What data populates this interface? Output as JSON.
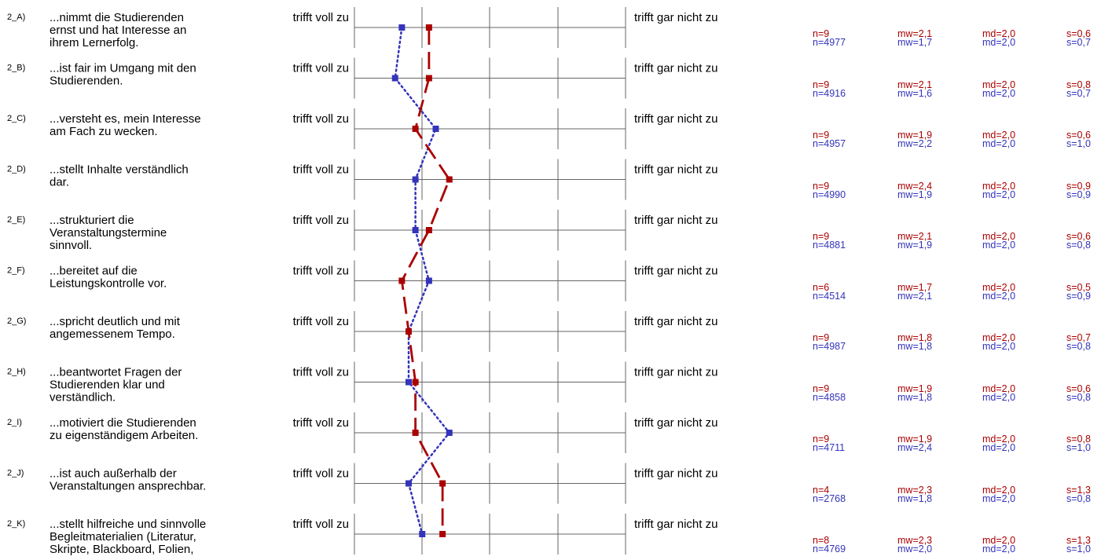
{
  "colors": {
    "course": "#aa0000",
    "reference": "#3333bb",
    "grid": "#666666"
  },
  "chart_data": {
    "type": "line",
    "scale": {
      "min": 1,
      "max": 5
    },
    "left_pole": "trifft voll zu",
    "right_pole": "trifft gar nicht zu",
    "items": [
      {
        "code": "2_A)",
        "label": [
          "...nimmt die Studierenden",
          "ernst und hat Interesse an",
          "ihrem Lernerfolg."
        ],
        "course": {
          "n": "n=9",
          "mw": "mw=2,1",
          "md": "md=2,0",
          "s": "s=0,6",
          "value": 2.1
        },
        "reference": {
          "n": "n=4977",
          "mw": "mw=1,7",
          "md": "md=2,0",
          "s": "s=0,7",
          "value": 1.7
        }
      },
      {
        "code": "2_B)",
        "label": [
          "...ist fair im Umgang mit den",
          "Studierenden."
        ],
        "course": {
          "n": "n=9",
          "mw": "mw=2,1",
          "md": "md=2,0",
          "s": "s=0,8",
          "value": 2.1
        },
        "reference": {
          "n": "n=4916",
          "mw": "mw=1,6",
          "md": "md=2,0",
          "s": "s=0,7",
          "value": 1.6
        }
      },
      {
        "code": "2_C)",
        "label": [
          "...versteht es, mein Interesse",
          "am Fach zu wecken."
        ],
        "course": {
          "n": "n=9",
          "mw": "mw=1,9",
          "md": "md=2,0",
          "s": "s=0,6",
          "value": 1.9
        },
        "reference": {
          "n": "n=4957",
          "mw": "mw=2,2",
          "md": "md=2,0",
          "s": "s=1,0",
          "value": 2.2
        }
      },
      {
        "code": "2_D)",
        "label": [
          "...stellt Inhalte verständlich",
          "dar."
        ],
        "course": {
          "n": "n=9",
          "mw": "mw=2,4",
          "md": "md=2,0",
          "s": "s=0,9",
          "value": 2.4
        },
        "reference": {
          "n": "n=4990",
          "mw": "mw=1,9",
          "md": "md=2,0",
          "s": "s=0,9",
          "value": 1.9
        }
      },
      {
        "code": "2_E)",
        "label": [
          "...strukturiert die",
          "Veranstaltungstermine",
          "sinnvoll."
        ],
        "course": {
          "n": "n=9",
          "mw": "mw=2,1",
          "md": "md=2,0",
          "s": "s=0,6",
          "value": 2.1
        },
        "reference": {
          "n": "n=4881",
          "mw": "mw=1,9",
          "md": "md=2,0",
          "s": "s=0,8",
          "value": 1.9
        }
      },
      {
        "code": "2_F)",
        "label": [
          "...bereitet auf die",
          "Leistungskontrolle vor."
        ],
        "course": {
          "n": "n=6",
          "mw": "mw=1,7",
          "md": "md=2,0",
          "s": "s=0,5",
          "value": 1.7
        },
        "reference": {
          "n": "n=4514",
          "mw": "mw=2,1",
          "md": "md=2,0",
          "s": "s=0,9",
          "value": 2.1
        }
      },
      {
        "code": "2_G)",
        "label": [
          "...spricht deutlich und mit",
          "angemessenem Tempo."
        ],
        "course": {
          "n": "n=9",
          "mw": "mw=1,8",
          "md": "md=2,0",
          "s": "s=0,7",
          "value": 1.8
        },
        "reference": {
          "n": "n=4987",
          "mw": "mw=1,8",
          "md": "md=2,0",
          "s": "s=0,8",
          "value": 1.8
        }
      },
      {
        "code": "2_H)",
        "label": [
          "...beantwortet Fragen der",
          "Studierenden klar und",
          "verständlich."
        ],
        "course": {
          "n": "n=9",
          "mw": "mw=1,9",
          "md": "md=2,0",
          "s": "s=0,6",
          "value": 1.9
        },
        "reference": {
          "n": "n=4858",
          "mw": "mw=1,8",
          "md": "md=2,0",
          "s": "s=0,8",
          "value": 1.8
        }
      },
      {
        "code": "2_I)",
        "label": [
          "...motiviert die Studierenden",
          "zu eigenständigem Arbeiten."
        ],
        "course": {
          "n": "n=9",
          "mw": "mw=1,9",
          "md": "md=2,0",
          "s": "s=0,8",
          "value": 1.9
        },
        "reference": {
          "n": "n=4711",
          "mw": "mw=2,4",
          "md": "md=2,0",
          "s": "s=1,0",
          "value": 2.4
        }
      },
      {
        "code": "2_J)",
        "label": [
          "...ist auch außerhalb der",
          "Veranstaltungen ansprechbar."
        ],
        "course": {
          "n": "n=4",
          "mw": "mw=2,3",
          "md": "md=2,0",
          "s": "s=1,3",
          "value": 2.3
        },
        "reference": {
          "n": "n=2768",
          "mw": "mw=1,8",
          "md": "md=2,0",
          "s": "s=0,8",
          "value": 1.8
        }
      },
      {
        "code": "2_K)",
        "label": [
          "...stellt hilfreiche und sinnvolle",
          "Begleitmaterialien (Literatur,",
          "Skripte, Blackboard, Folien,"
        ],
        "course": {
          "n": "n=8",
          "mw": "mw=2,3",
          "md": "md=2,0",
          "s": "s=1,3",
          "value": 2.3
        },
        "reference": {
          "n": "n=4769",
          "mw": "mw=2,0",
          "md": "md=2,0",
          "s": "s=1,0",
          "value": 2.0
        }
      }
    ]
  }
}
